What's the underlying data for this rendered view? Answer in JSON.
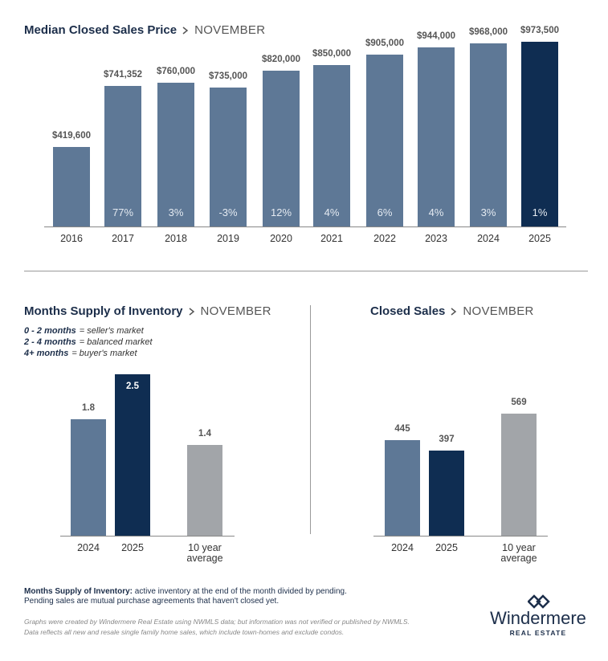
{
  "chart_data": [
    {
      "type": "bar",
      "title": "Median Closed Sales Price",
      "subtitle": "NOVEMBER",
      "categories": [
        "2016",
        "2017",
        "2018",
        "2019",
        "2020",
        "2021",
        "2022",
        "2023",
        "2024",
        "2025"
      ],
      "values": [
        419600,
        741352,
        760000,
        735000,
        820000,
        850000,
        905000,
        944000,
        968000,
        973500
      ],
      "value_labels": [
        "$419,600",
        "$741,352",
        "$760,000",
        "$735,000",
        "$820,000",
        "$850,000",
        "$905,000",
        "$944,000",
        "$968,000",
        "$973,500"
      ],
      "change_labels": [
        null,
        "77%",
        "3%",
        "-3%",
        "12%",
        "4%",
        "6%",
        "4%",
        "3%",
        "1%"
      ],
      "colors": [
        "#5e7896",
        "#5e7896",
        "#5e7896",
        "#5e7896",
        "#5e7896",
        "#5e7896",
        "#5e7896",
        "#5e7896",
        "#5e7896",
        "#0f2d52"
      ],
      "ylim": [
        0,
        1000000
      ]
    },
    {
      "type": "bar",
      "title": "Months Supply of Inventory",
      "subtitle": "NOVEMBER",
      "notes": [
        {
          "range": "0 - 2 months",
          "text": "= seller's market"
        },
        {
          "range": "2 - 4 months",
          "text": "= balanced market"
        },
        {
          "range": "4+ months",
          "text": "= buyer's market"
        }
      ],
      "categories": [
        "2024",
        "2025",
        "10 year average"
      ],
      "values": [
        1.8,
        2.5,
        1.4
      ],
      "colors": [
        "#5e7896",
        "#0f2d52",
        "#a2a5a9"
      ],
      "ylim": [
        0,
        2.5
      ]
    },
    {
      "type": "bar",
      "title": "Closed Sales",
      "subtitle": "NOVEMBER",
      "categories": [
        "2024",
        "2025",
        "10 year average"
      ],
      "values": [
        445,
        397,
        569
      ],
      "colors": [
        "#5e7896",
        "#0f2d52",
        "#a2a5a9"
      ],
      "ylim": [
        0,
        600
      ]
    }
  ],
  "definition": {
    "term": "Months Supply of Inventory:",
    "text": "active inventory at the end of the month divided by pending.",
    "line2": "Pending sales are mutual purchase agreements that haven't closed yet."
  },
  "disclaimer": [
    "Graphs were created by Windermere Real Estate using NWMLS data; but information was not verified or published by NWMLS.",
    "Data reflects all new and resale single family home sales, which include town-homes and exclude condos."
  ],
  "logo": {
    "name": "Windermere",
    "tagline": "REAL ESTATE"
  }
}
